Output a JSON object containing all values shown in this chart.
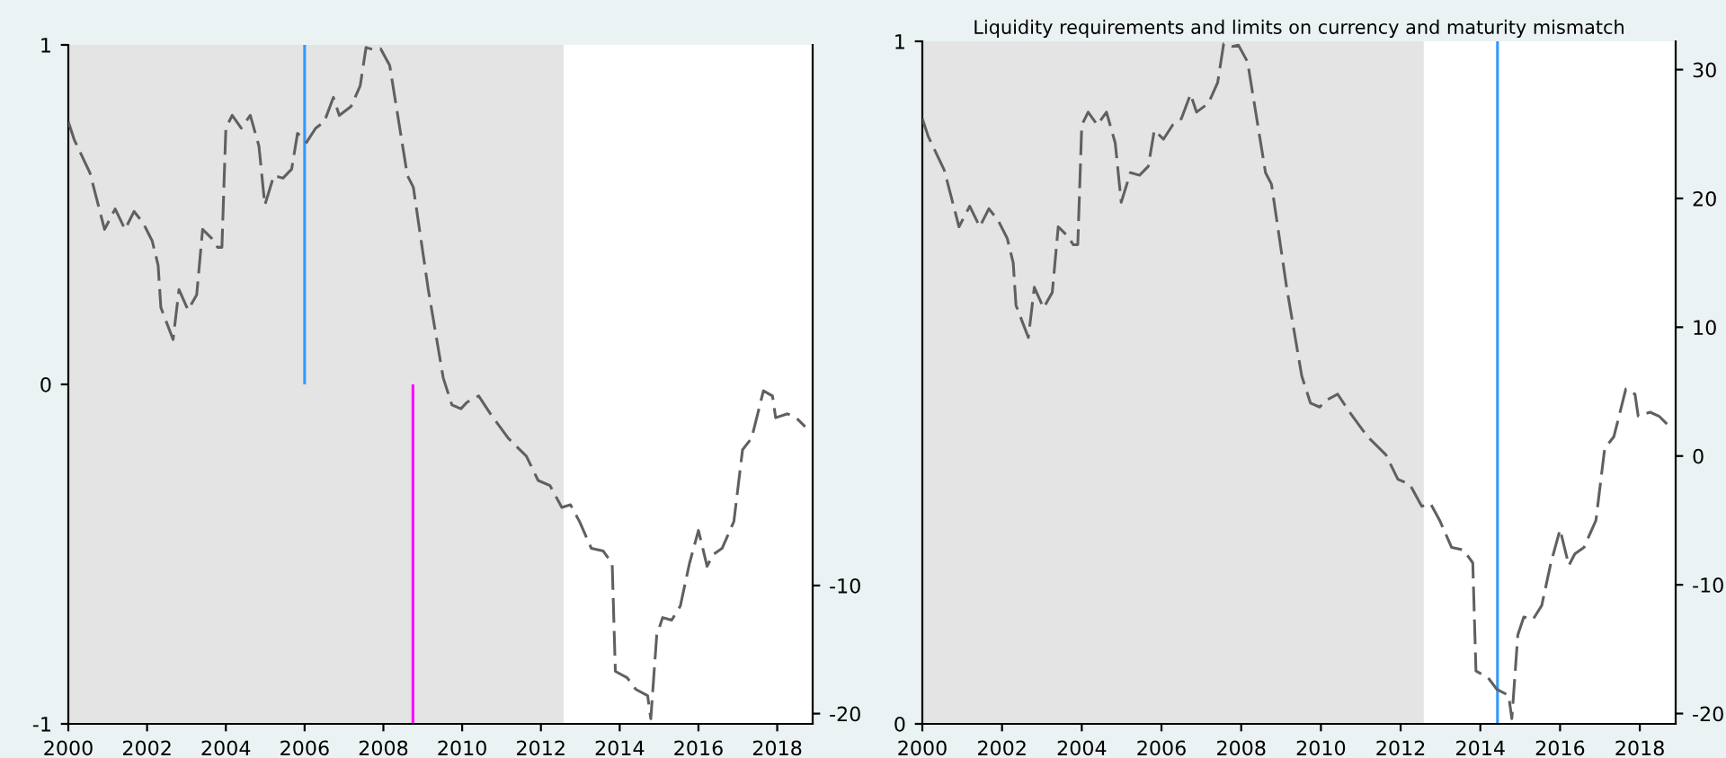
{
  "chart_data": [
    {
      "type": "line",
      "xlim": [
        2000,
        2018.9
      ],
      "xticks": [
        2000,
        2002,
        2004,
        2006,
        2008,
        2010,
        2012,
        2014,
        2016,
        2018
      ],
      "ylim": [
        -1,
        1
      ],
      "yticks": [
        -1,
        0,
        1
      ],
      "y2lim": [
        -20.8,
        32.2
      ],
      "y2ticks": [
        -20,
        -10
      ],
      "line_style": "dashed",
      "bands": [
        {
          "axis": "x",
          "from": 2000,
          "to": 2012.58,
          "color": "#e4e4e4"
        }
      ],
      "series": [
        {
          "type": "bar",
          "x": [
            2006,
            2008.75
          ],
          "values": [
            1,
            -1
          ],
          "colors": [
            "#3399ff",
            "#ff00ff"
          ]
        },
        {
          "axis": "y2",
          "color": "#606060",
          "x": [
            2000.0,
            2000.15,
            2000.55,
            2000.92,
            2001.19,
            2001.44,
            2001.67,
            2001.9,
            2002.13,
            2002.28,
            2002.35,
            2002.66,
            2002.81,
            2003.04,
            2003.26,
            2003.41,
            2003.64,
            2003.79,
            2003.9,
            2004.0,
            2004.16,
            2004.39,
            2004.62,
            2004.84,
            2004.99,
            2005.22,
            2005.45,
            2005.67,
            2005.82,
            2006.05,
            2006.28,
            2006.5,
            2006.73,
            2006.88,
            2007.18,
            2007.41,
            2007.56,
            2007.78,
            2007.93,
            2008.16,
            2008.39,
            2008.61,
            2008.76,
            2009.14,
            2009.52,
            2009.74,
            2009.97,
            2010.12,
            2010.42,
            2010.72,
            2011.17,
            2011.63,
            2011.93,
            2012.23,
            2012.53,
            2012.75,
            2012.98,
            2013.28,
            2013.58,
            2013.81,
            2013.89,
            2014.19,
            2014.41,
            2014.71,
            2014.79,
            2014.94,
            2015.09,
            2015.32,
            2015.54,
            2015.77,
            2016.0,
            2016.22,
            2016.37,
            2016.6,
            2016.9,
            2017.12,
            2017.35,
            2017.65,
            2017.88,
            2017.96,
            2018.26,
            2018.48,
            2018.71
          ],
          "values": [
            26.2,
            24.8,
            22.2,
            17.8,
            19.4,
            17.8,
            19.2,
            18.3,
            16.9,
            15.0,
            11.7,
            9.2,
            13.1,
            11.5,
            12.7,
            17.8,
            17.1,
            16.4,
            16.4,
            25.7,
            26.7,
            25.7,
            26.7,
            24.3,
            19.7,
            22.0,
            21.8,
            22.5,
            25.3,
            24.6,
            25.7,
            26.2,
            28.1,
            26.7,
            27.4,
            29.0,
            32.0,
            31.8,
            31.9,
            30.6,
            26.2,
            22.0,
            21.1,
            13.1,
            6.2,
            4.1,
            3.8,
            4.3,
            4.8,
            3.4,
            1.5,
            0.1,
            -1.8,
            -2.2,
            -3.9,
            -3.7,
            -5.0,
            -7.1,
            -7.3,
            -8.3,
            -16.7,
            -17.2,
            -18.1,
            -18.6,
            -20.4,
            -13.9,
            -12.5,
            -12.7,
            -11.6,
            -8.3,
            -5.7,
            -8.5,
            -7.6,
            -7.1,
            -5.0,
            0.6,
            1.5,
            5.2,
            4.8,
            3.1,
            3.4,
            3.1,
            2.4
          ]
        }
      ]
    },
    {
      "type": "line",
      "title": "Liquidity requirements and limits on currency and maturity mismatch",
      "xlim": [
        2000,
        2018.9
      ],
      "xticks": [
        2000,
        2002,
        2004,
        2006,
        2008,
        2010,
        2012,
        2014,
        2016,
        2018
      ],
      "ylim": [
        0,
        1
      ],
      "yticks": [
        0,
        1
      ],
      "y2lim": [
        -20.8,
        32.2
      ],
      "y2ticks": [
        -20,
        -10,
        0,
        10,
        20,
        30
      ],
      "line_style": "dashed",
      "bands": [
        {
          "axis": "x",
          "from": 2000,
          "to": 2012.58,
          "color": "#e4e4e4"
        }
      ],
      "series": [
        {
          "type": "bar",
          "x": [
            2014.43
          ],
          "values": [
            1
          ],
          "colors": [
            "#3399ff"
          ]
        },
        {
          "axis": "y2",
          "color": "#606060",
          "x": [
            2000.0,
            2000.15,
            2000.55,
            2000.92,
            2001.19,
            2001.44,
            2001.67,
            2001.9,
            2002.13,
            2002.28,
            2002.35,
            2002.66,
            2002.81,
            2003.04,
            2003.26,
            2003.41,
            2003.64,
            2003.79,
            2003.9,
            2004.0,
            2004.16,
            2004.39,
            2004.62,
            2004.84,
            2004.99,
            2005.22,
            2005.45,
            2005.67,
            2005.82,
            2006.05,
            2006.28,
            2006.5,
            2006.73,
            2006.88,
            2007.18,
            2007.41,
            2007.56,
            2007.78,
            2007.93,
            2008.16,
            2008.39,
            2008.61,
            2008.76,
            2009.14,
            2009.52,
            2009.74,
            2009.97,
            2010.12,
            2010.42,
            2010.72,
            2011.17,
            2011.63,
            2011.93,
            2012.23,
            2012.53,
            2012.75,
            2012.98,
            2013.28,
            2013.58,
            2013.81,
            2013.89,
            2014.19,
            2014.41,
            2014.71,
            2014.79,
            2014.94,
            2015.09,
            2015.32,
            2015.54,
            2015.77,
            2016.0,
            2016.22,
            2016.37,
            2016.6,
            2016.9,
            2017.12,
            2017.35,
            2017.65,
            2017.88,
            2017.96,
            2018.26,
            2018.48,
            2018.71
          ],
          "values": [
            26.2,
            24.8,
            22.2,
            17.8,
            19.4,
            17.8,
            19.2,
            18.3,
            16.9,
            15.0,
            11.7,
            9.2,
            13.1,
            11.5,
            12.7,
            17.8,
            17.1,
            16.4,
            16.4,
            25.7,
            26.7,
            25.7,
            26.7,
            24.3,
            19.7,
            22.0,
            21.8,
            22.5,
            25.3,
            24.6,
            25.7,
            26.2,
            28.1,
            26.7,
            27.4,
            29.0,
            32.0,
            31.8,
            31.9,
            30.6,
            26.2,
            22.0,
            21.1,
            13.1,
            6.2,
            4.1,
            3.8,
            4.3,
            4.8,
            3.4,
            1.5,
            0.1,
            -1.8,
            -2.2,
            -3.9,
            -3.7,
            -5.0,
            -7.1,
            -7.3,
            -8.3,
            -16.7,
            -17.2,
            -18.1,
            -18.6,
            -20.4,
            -13.9,
            -12.5,
            -12.7,
            -11.6,
            -8.3,
            -5.7,
            -8.5,
            -7.6,
            -7.1,
            -5.0,
            0.6,
            1.5,
            5.2,
            4.8,
            3.1,
            3.4,
            3.1,
            2.4
          ]
        }
      ]
    }
  ]
}
